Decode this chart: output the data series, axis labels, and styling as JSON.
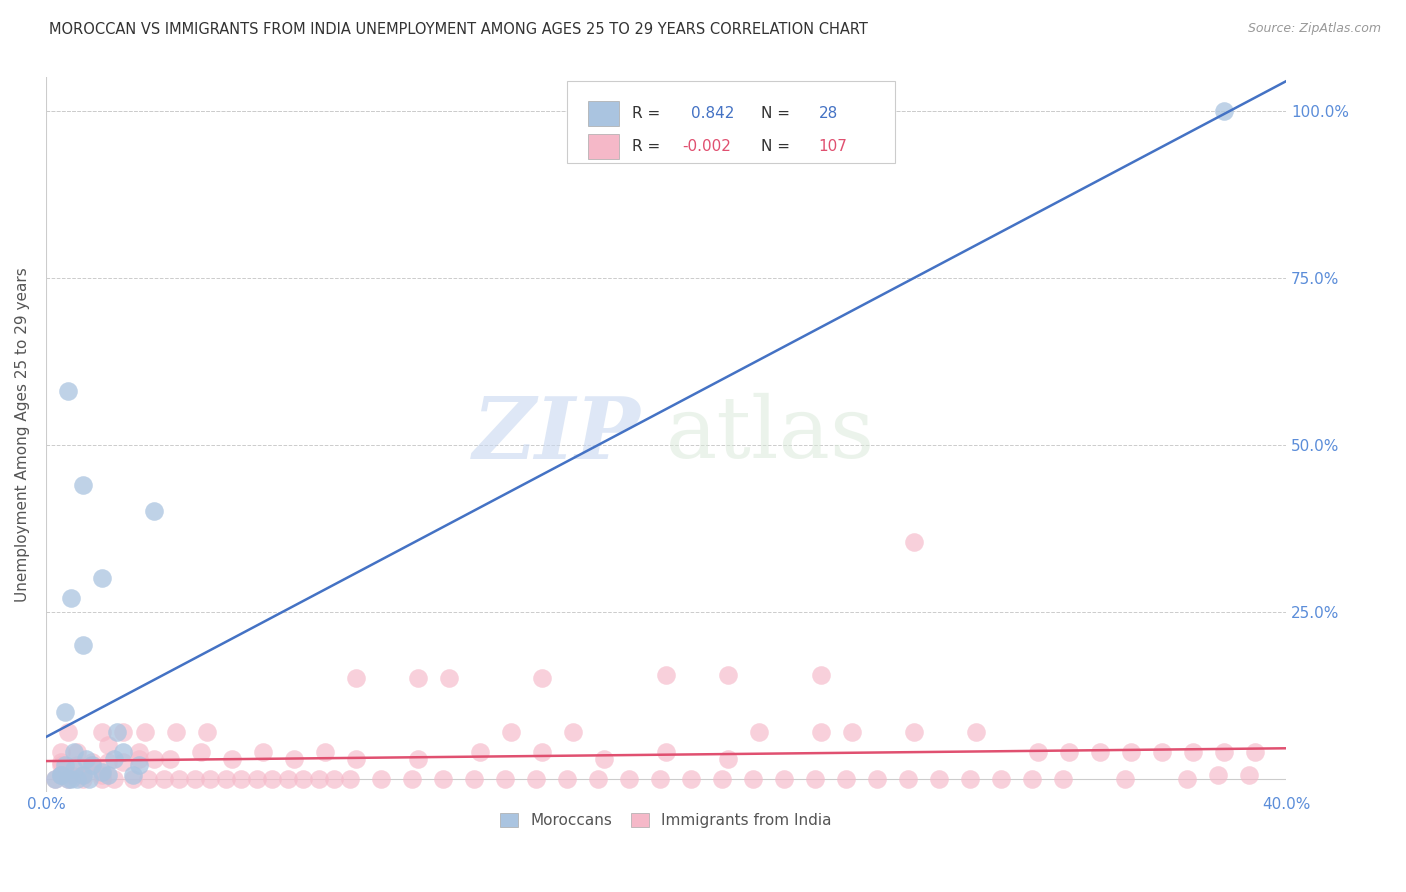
{
  "title": "MOROCCAN VS IMMIGRANTS FROM INDIA UNEMPLOYMENT AMONG AGES 25 TO 29 YEARS CORRELATION CHART",
  "source": "Source: ZipAtlas.com",
  "ylabel": "Unemployment Among Ages 25 to 29 years",
  "xlim": [
    0.0,
    0.4
  ],
  "ylim": [
    -0.02,
    1.05
  ],
  "xticks": [
    0.0,
    0.1,
    0.2,
    0.3,
    0.4
  ],
  "xticklabels": [
    "0.0%",
    "",
    "",
    "",
    "40.0%"
  ],
  "yticks": [
    0.0,
    0.25,
    0.5,
    0.75,
    1.0
  ],
  "yticklabels_right": [
    "",
    "25.0%",
    "50.0%",
    "75.0%",
    "100.0%"
  ],
  "moroccan_R": 0.842,
  "moroccan_N": 28,
  "india_R": -0.002,
  "india_N": 107,
  "moroccan_color": "#aac4e0",
  "india_color": "#f5b8c8",
  "moroccan_line_color": "#4472c4",
  "india_line_color": "#e05070",
  "legend_moroccan_label": "Moroccans",
  "legend_india_label": "Immigrants from India",
  "watermark_zip": "ZIP",
  "watermark_atlas": "atlas",
  "background_color": "#ffffff",
  "moroccan_points": [
    [
      0.003,
      0.0
    ],
    [
      0.005,
      0.005
    ],
    [
      0.006,
      0.02
    ],
    [
      0.008,
      0.0
    ],
    [
      0.009,
      0.015
    ],
    [
      0.012,
      0.005
    ],
    [
      0.013,
      0.03
    ],
    [
      0.015,
      0.02
    ],
    [
      0.018,
      0.01
    ],
    [
      0.02,
      0.005
    ],
    [
      0.022,
      0.03
    ],
    [
      0.023,
      0.07
    ],
    [
      0.025,
      0.04
    ],
    [
      0.028,
      0.005
    ],
    [
      0.03,
      0.02
    ],
    [
      0.008,
      0.27
    ],
    [
      0.012,
      0.2
    ],
    [
      0.012,
      0.44
    ],
    [
      0.035,
      0.4
    ],
    [
      0.007,
      0.58
    ],
    [
      0.018,
      0.3
    ],
    [
      0.005,
      0.005
    ],
    [
      0.007,
      0.0
    ],
    [
      0.01,
      0.0
    ],
    [
      0.38,
      1.0
    ],
    [
      0.006,
      0.1
    ],
    [
      0.009,
      0.04
    ],
    [
      0.014,
      0.0
    ]
  ],
  "india_points": [
    [
      0.003,
      0.0
    ],
    [
      0.007,
      0.0
    ],
    [
      0.012,
      0.0
    ],
    [
      0.018,
      0.0
    ],
    [
      0.022,
      0.0
    ],
    [
      0.028,
      0.0
    ],
    [
      0.033,
      0.0
    ],
    [
      0.038,
      0.0
    ],
    [
      0.043,
      0.0
    ],
    [
      0.048,
      0.0
    ],
    [
      0.053,
      0.0
    ],
    [
      0.058,
      0.0
    ],
    [
      0.063,
      0.0
    ],
    [
      0.068,
      0.0
    ],
    [
      0.073,
      0.0
    ],
    [
      0.078,
      0.0
    ],
    [
      0.083,
      0.0
    ],
    [
      0.088,
      0.0
    ],
    [
      0.093,
      0.0
    ],
    [
      0.098,
      0.0
    ],
    [
      0.108,
      0.0
    ],
    [
      0.118,
      0.0
    ],
    [
      0.128,
      0.0
    ],
    [
      0.138,
      0.0
    ],
    [
      0.148,
      0.0
    ],
    [
      0.158,
      0.0
    ],
    [
      0.168,
      0.0
    ],
    [
      0.178,
      0.0
    ],
    [
      0.188,
      0.0
    ],
    [
      0.198,
      0.0
    ],
    [
      0.208,
      0.0
    ],
    [
      0.218,
      0.0
    ],
    [
      0.228,
      0.0
    ],
    [
      0.238,
      0.0
    ],
    [
      0.248,
      0.0
    ],
    [
      0.258,
      0.0
    ],
    [
      0.268,
      0.0
    ],
    [
      0.278,
      0.0
    ],
    [
      0.288,
      0.0
    ],
    [
      0.298,
      0.0
    ],
    [
      0.308,
      0.0
    ],
    [
      0.318,
      0.0
    ],
    [
      0.328,
      0.0
    ],
    [
      0.348,
      0.0
    ],
    [
      0.368,
      0.0
    ],
    [
      0.005,
      0.02
    ],
    [
      0.01,
      0.02
    ],
    [
      0.015,
      0.02
    ],
    [
      0.02,
      0.025
    ],
    [
      0.025,
      0.025
    ],
    [
      0.03,
      0.03
    ],
    [
      0.035,
      0.03
    ],
    [
      0.04,
      0.03
    ],
    [
      0.05,
      0.04
    ],
    [
      0.06,
      0.03
    ],
    [
      0.07,
      0.04
    ],
    [
      0.08,
      0.03
    ],
    [
      0.09,
      0.04
    ],
    [
      0.1,
      0.03
    ],
    [
      0.12,
      0.03
    ],
    [
      0.14,
      0.04
    ],
    [
      0.16,
      0.04
    ],
    [
      0.18,
      0.03
    ],
    [
      0.2,
      0.04
    ],
    [
      0.22,
      0.03
    ],
    [
      0.025,
      0.07
    ],
    [
      0.032,
      0.07
    ],
    [
      0.042,
      0.07
    ],
    [
      0.052,
      0.07
    ],
    [
      0.12,
      0.15
    ],
    [
      0.2,
      0.155
    ],
    [
      0.22,
      0.155
    ],
    [
      0.25,
      0.155
    ],
    [
      0.16,
      0.15
    ],
    [
      0.28,
      0.355
    ],
    [
      0.005,
      0.04
    ],
    [
      0.01,
      0.04
    ],
    [
      0.02,
      0.05
    ],
    [
      0.03,
      0.04
    ],
    [
      0.15,
      0.07
    ],
    [
      0.17,
      0.07
    ],
    [
      0.25,
      0.07
    ],
    [
      0.3,
      0.07
    ],
    [
      0.33,
      0.04
    ],
    [
      0.35,
      0.04
    ],
    [
      0.37,
      0.04
    ],
    [
      0.38,
      0.04
    ],
    [
      0.39,
      0.04
    ],
    [
      0.005,
      0.005
    ],
    [
      0.008,
      0.005
    ],
    [
      0.012,
      0.005
    ],
    [
      0.018,
      0.005
    ],
    [
      0.23,
      0.07
    ],
    [
      0.26,
      0.07
    ],
    [
      0.28,
      0.07
    ],
    [
      0.32,
      0.04
    ],
    [
      0.34,
      0.04
    ],
    [
      0.1,
      0.15
    ],
    [
      0.13,
      0.15
    ],
    [
      0.007,
      0.07
    ],
    [
      0.018,
      0.07
    ],
    [
      0.36,
      0.04
    ],
    [
      0.378,
      0.005
    ],
    [
      0.388,
      0.005
    ],
    [
      0.005,
      0.025
    ],
    [
      0.015,
      0.025
    ]
  ]
}
